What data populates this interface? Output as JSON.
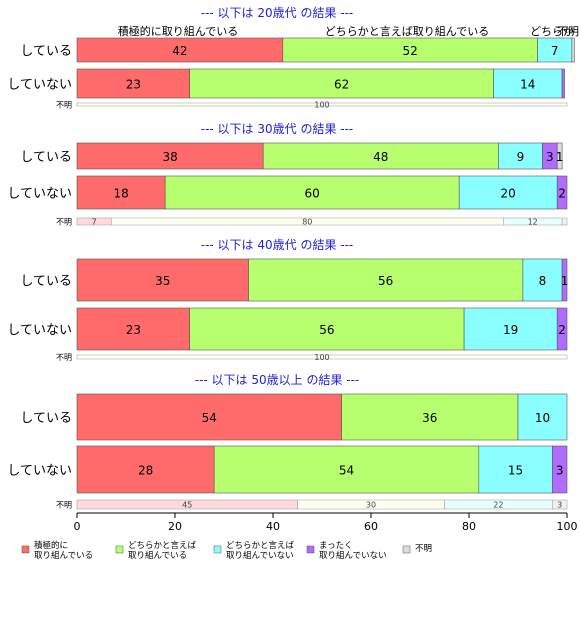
{
  "chart_data": {
    "type": "bar",
    "orientation": "horizontal-stacked-percent",
    "xlim": [
      0,
      100
    ],
    "xticks": [
      "0",
      "20",
      "40",
      "60",
      "80",
      "100"
    ],
    "grid": false,
    "legend_position": "bottom-left",
    "series": [
      {
        "name": "積極的に\n取り組んでいる",
        "color": "#ff6b6b"
      },
      {
        "name": "どちらかと言えば\n取り組んでいる",
        "color": "#b8ff70"
      },
      {
        "name": "どちらかと言えば\n取り組んでいない",
        "color": "#8affff"
      },
      {
        "name": "まったく\n取り組んでいない",
        "color": "#b06bff"
      },
      {
        "name": "不明",
        "color": "#dddddd"
      }
    ],
    "top_labels": [
      "積極的に取り組んでいる",
      "どちらかと言えば取り組んでいる",
      "どちらか",
      "不明"
    ],
    "groups": [
      {
        "title": "--- 以下は 20歳代 の結果 ---",
        "rows": [
          {
            "label": "している",
            "values": [
              42,
              52,
              7,
              0,
              0.5
            ],
            "labels": [
              "42",
              "52",
              "7",
              "",
              ""
            ]
          },
          {
            "label": "していない",
            "values": [
              23,
              62,
              14,
              0.5,
              0
            ],
            "labels": [
              "23",
              "62",
              "14",
              "",
              ""
            ]
          }
        ],
        "unknown": {
          "label": "不明",
          "values": [
            0,
            100,
            0,
            0,
            0
          ],
          "labels": [
            "",
            "100",
            "",
            "",
            ""
          ]
        }
      },
      {
        "title": "--- 以下は 30歳代 の結果 ---",
        "rows": [
          {
            "label": "している",
            "values": [
              38,
              48,
              9,
              3,
              1
            ],
            "labels": [
              "38",
              "48",
              "9",
              "3",
              "1"
            ]
          },
          {
            "label": "していない",
            "values": [
              18,
              60,
              20,
              2,
              0
            ],
            "labels": [
              "18",
              "60",
              "20",
              "2",
              ""
            ]
          }
        ],
        "unknown": {
          "label": "不明",
          "values": [
            7,
            80,
            12,
            0,
            1
          ],
          "labels": [
            "7",
            "80",
            "12",
            "",
            ""
          ]
        }
      },
      {
        "title": "--- 以下は 40歳代 の結果 ---",
        "rows": [
          {
            "label": "している",
            "values": [
              35,
              56,
              8,
              1,
              0
            ],
            "labels": [
              "35",
              "56",
              "8",
              "1",
              ""
            ]
          },
          {
            "label": "していない",
            "values": [
              23,
              56,
              19,
              2,
              0
            ],
            "labels": [
              "23",
              "56",
              "19",
              "2",
              ""
            ]
          }
        ],
        "unknown": {
          "label": "不明",
          "values": [
            0,
            100,
            0,
            0,
            0
          ],
          "labels": [
            "",
            "100",
            "",
            "",
            ""
          ]
        }
      },
      {
        "title": "--- 以下は 50歳以上 の結果 ---",
        "rows": [
          {
            "label": "している",
            "values": [
              54,
              36,
              10,
              0,
              0
            ],
            "labels": [
              "54",
              "36",
              "10",
              "",
              ""
            ]
          },
          {
            "label": "していない",
            "values": [
              28,
              54,
              15,
              3,
              0
            ],
            "labels": [
              "28",
              "54",
              "15",
              "3",
              ""
            ]
          }
        ],
        "unknown": {
          "label": "不明",
          "values": [
            45,
            30,
            22,
            0,
            3
          ],
          "labels": [
            "45",
            "30",
            "22",
            "",
            "3"
          ]
        }
      }
    ]
  }
}
